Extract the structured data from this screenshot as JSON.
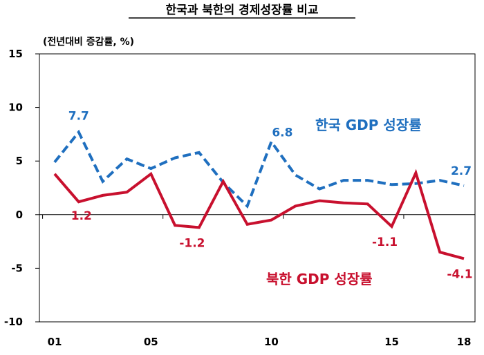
{
  "chart_data": {
    "type": "line",
    "title": "한국과 북한의 경제성장률 비교",
    "unit_label": "(전년대비 증감률, %)",
    "x_tick_labels": [
      "01",
      "05",
      "10",
      "15",
      "18"
    ],
    "x": [
      2001,
      2002,
      2003,
      2004,
      2005,
      2006,
      2007,
      2008,
      2009,
      2010,
      2011,
      2012,
      2013,
      2014,
      2015,
      2016,
      2017,
      2018
    ],
    "ylim": [
      -10,
      15
    ],
    "yticks": [
      -10,
      -5,
      0,
      5,
      10,
      15
    ],
    "series": [
      {
        "name": "한국 GDP 성장률",
        "color": "#1f6fbf",
        "dash": true,
        "values": [
          4.9,
          7.7,
          3.1,
          5.2,
          4.3,
          5.3,
          5.8,
          3.0,
          0.8,
          6.8,
          3.7,
          2.4,
          3.2,
          3.2,
          2.8,
          2.9,
          3.2,
          2.7
        ]
      },
      {
        "name": "북한 GDP 성장률",
        "color": "#c8102e",
        "dash": false,
        "values": [
          3.8,
          1.2,
          1.8,
          2.1,
          3.8,
          -1.0,
          -1.2,
          3.1,
          -0.9,
          -0.5,
          0.8,
          1.3,
          1.1,
          1.0,
          -1.1,
          3.9,
          -3.5,
          -4.1
        ]
      }
    ],
    "data_labels": [
      {
        "series": 0,
        "x": 2002,
        "text": "7.7"
      },
      {
        "series": 0,
        "x": 2010,
        "text": "6.8"
      },
      {
        "series": 0,
        "x": 2018,
        "text": "2.7"
      },
      {
        "series": 1,
        "x": 2002,
        "text": "1.2"
      },
      {
        "series": 1,
        "x": 2007,
        "text": "-1.2"
      },
      {
        "series": 1,
        "x": 2015,
        "text": "-1.1"
      },
      {
        "series": 1,
        "x": 2018,
        "text": "-4.1"
      }
    ]
  }
}
